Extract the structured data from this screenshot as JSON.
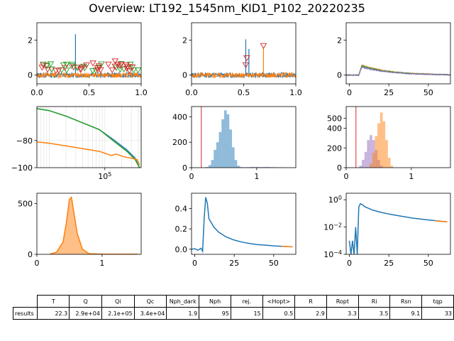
{
  "figure": {
    "title": "Overview: LT192_1545nm_KID1_P102_20220235"
  },
  "colors": {
    "blue": "#1f77b4",
    "orange": "#ff7f0e",
    "green": "#2ca02c",
    "red": "#d62728",
    "purple": "#9467bd"
  },
  "chart_data": [
    {
      "id": "p1",
      "type": "line",
      "xlim": [
        0,
        1.0
      ],
      "ylim": [
        -0.5,
        3.0
      ],
      "xticks": [
        "0.0",
        "0.5",
        "1.0"
      ],
      "yticks": [
        "0",
        "2"
      ],
      "series": [
        {
          "color": "blue",
          "kind": "noise",
          "level": 0.0,
          "spikes": [
            {
              "x": 0.37,
              "y": 2.35
            }
          ]
        },
        {
          "color": "orange",
          "kind": "noise",
          "level": 0.0
        }
      ],
      "markers": [
        {
          "color": "green",
          "y_range": [
            0.2,
            0.65
          ]
        },
        {
          "color": "red",
          "y_range": [
            0.2,
            0.85
          ]
        }
      ]
    },
    {
      "id": "p2",
      "type": "line",
      "xlim": [
        0,
        1.0
      ],
      "ylim": [
        -0.5,
        3.0
      ],
      "xticks": [
        "0.0",
        "0.5",
        "1.0"
      ],
      "yticks": [
        "0",
        "2"
      ],
      "series": [
        {
          "color": "blue",
          "kind": "noise",
          "level": 0.0,
          "spikes": [
            {
              "x": 0.52,
              "y": 2.05
            },
            {
              "x": 0.55,
              "y": 1.5
            }
          ]
        },
        {
          "color": "orange",
          "kind": "noise",
          "level": 0.0,
          "spikes": [
            {
              "x": 0.69,
              "y": 1.6
            }
          ]
        }
      ],
      "markers": [
        {
          "color": "red",
          "points": [
            {
              "x": 0.52,
              "y": 0.55
            },
            {
              "x": 0.53,
              "y": 0.95
            },
            {
              "x": 0.69,
              "y": 1.65
            }
          ]
        }
      ]
    },
    {
      "id": "p3",
      "type": "line",
      "xlim": [
        -2,
        64
      ],
      "ylim": [
        -0.5,
        3.0
      ],
      "xticks": [
        "0",
        "25",
        "50"
      ],
      "yticks": [
        "0",
        "2"
      ],
      "series": [
        {
          "color": "blue",
          "kind": "pulse",
          "peak": 0.55
        },
        {
          "color": "orange",
          "kind": "pulse",
          "peak": 0.65
        },
        {
          "color": "green",
          "kind": "pulse",
          "peak": 0.6
        },
        {
          "color": "purple",
          "kind": "pulse",
          "peak": 0.5
        }
      ]
    },
    {
      "id": "p4",
      "type": "line",
      "xscale": "log",
      "xlim": [
        6000,
        450000
      ],
      "ylim": [
        -100,
        -55
      ],
      "xticks": [
        "10^5"
      ],
      "yticks": [
        "-80",
        "-100"
      ],
      "grid": true,
      "series": [
        {
          "color": "blue",
          "points": [
            [
              6000,
              -56.5
            ],
            [
              10000,
              -58
            ],
            [
              20000,
              -62
            ],
            [
              40000,
              -67
            ],
            [
              80000,
              -72
            ],
            [
              150000,
              -80
            ],
            [
              250000,
              -87
            ],
            [
              350000,
              -93
            ],
            [
              420000,
              -100
            ]
          ]
        },
        {
          "color": "green",
          "points": [
            [
              6000,
              -56.5
            ],
            [
              10000,
              -58
            ],
            [
              20000,
              -62
            ],
            [
              40000,
              -67
            ],
            [
              80000,
              -72
            ],
            [
              150000,
              -81
            ],
            [
              250000,
              -88
            ],
            [
              350000,
              -94
            ],
            [
              420000,
              -100
            ]
          ]
        },
        {
          "color": "orange",
          "points": [
            [
              6000,
              -81
            ],
            [
              10000,
              -82
            ],
            [
              20000,
              -84
            ],
            [
              40000,
              -86
            ],
            [
              80000,
              -88
            ],
            [
              130000,
              -91
            ],
            [
              160000,
              -90
            ],
            [
              220000,
              -92
            ],
            [
              300000,
              -93
            ],
            [
              380000,
              -94
            ],
            [
              420000,
              -98
            ]
          ]
        }
      ]
    },
    {
      "id": "p5",
      "type": "histogram",
      "xlim": [
        0,
        1.6
      ],
      "ylim": [
        0,
        480
      ],
      "xticks": [
        "0",
        "1"
      ],
      "yticks": [
        "0",
        "200",
        "400"
      ],
      "vline": {
        "x": 0.15,
        "color": "red"
      },
      "series": [
        {
          "color": "blue",
          "alpha": 0.5,
          "bins": [
            0.22,
            0.26,
            0.3,
            0.34,
            0.38,
            0.42,
            0.46,
            0.5,
            0.54,
            0.58,
            0.62,
            0.66,
            0.7,
            0.74
          ],
          "values": [
            5,
            20,
            60,
            140,
            200,
            280,
            380,
            450,
            420,
            300,
            160,
            60,
            15,
            5
          ]
        },
        {
          "color": "purple",
          "alpha": 0.5,
          "bins": [
            0.8,
            0.9,
            1.0,
            1.1,
            1.2,
            1.3
          ],
          "values": [
            4,
            6,
            5,
            6,
            4,
            3
          ]
        }
      ]
    },
    {
      "id": "p6",
      "type": "histogram",
      "xlim": [
        0,
        1.6
      ],
      "ylim": [
        0,
        620
      ],
      "xticks": [
        "0",
        "1"
      ],
      "yticks": [
        "0",
        "200",
        "400",
        "500"
      ],
      "vline": {
        "x": 0.15,
        "color": "red"
      },
      "series": [
        {
          "color": "purple",
          "alpha": 0.5,
          "bins": [
            0.2,
            0.24,
            0.28,
            0.32,
            0.36,
            0.4,
            0.44,
            0.48,
            0.52
          ],
          "values": [
            20,
            80,
            160,
            280,
            330,
            280,
            180,
            80,
            20
          ]
        },
        {
          "color": "orange",
          "alpha": 0.5,
          "bins": [
            0.36,
            0.4,
            0.44,
            0.48,
            0.52,
            0.56,
            0.6,
            0.64,
            0.68
          ],
          "values": [
            40,
            150,
            320,
            450,
            560,
            470,
            280,
            100,
            20
          ]
        }
      ]
    },
    {
      "id": "p7",
      "type": "area",
      "xlim": [
        0,
        1.6
      ],
      "ylim": [
        0,
        600
      ],
      "xticks": [
        "0",
        "1"
      ],
      "yticks": [
        "0",
        "500"
      ],
      "series": [
        {
          "color": "orange",
          "points": [
            [
              0.2,
              2
            ],
            [
              0.3,
              20
            ],
            [
              0.4,
              120
            ],
            [
              0.45,
              300
            ],
            [
              0.5,
              540
            ],
            [
              0.53,
              560
            ],
            [
              0.57,
              400
            ],
            [
              0.62,
              200
            ],
            [
              0.7,
              50
            ],
            [
              0.8,
              6
            ],
            [
              1.0,
              2
            ],
            [
              1.55,
              2
            ]
          ]
        }
      ]
    },
    {
      "id": "p8",
      "type": "line",
      "xlim": [
        -2,
        64
      ],
      "ylim": [
        -0.05,
        0.55
      ],
      "xticks": [
        "0",
        "25",
        "50"
      ],
      "yticks": [
        "0.0",
        "0.2",
        "0.4"
      ],
      "series": [
        {
          "color": "blue",
          "points": [
            [
              -2,
              0
            ],
            [
              0,
              0.005
            ],
            [
              2,
              -0.01
            ],
            [
              4,
              0.01
            ],
            [
              5,
              -0.02
            ],
            [
              6,
              0.3
            ],
            [
              7,
              0.51
            ],
            [
              8,
              0.45
            ],
            [
              9,
              0.3
            ],
            [
              12,
              0.22
            ],
            [
              15,
              0.17
            ],
            [
              20,
              0.12
            ],
            [
              25,
              0.09
            ],
            [
              30,
              0.07
            ],
            [
              35,
              0.055
            ],
            [
              40,
              0.045
            ],
            [
              45,
              0.04
            ],
            [
              50,
              0.033
            ],
            [
              55,
              0.028
            ],
            [
              60,
              0.025
            ],
            [
              62,
              0.024
            ]
          ]
        },
        {
          "color": "orange",
          "points": [
            [
              55,
              0.028
            ],
            [
              58,
              0.026
            ],
            [
              60,
              0.025
            ],
            [
              62,
              0.024
            ]
          ]
        }
      ]
    },
    {
      "id": "p9",
      "type": "line",
      "yscale": "log",
      "xlim": [
        -2,
        64
      ],
      "ylim": [
        0.0001,
        3
      ],
      "xticks": [
        "0",
        "25",
        "50"
      ],
      "yticks": [
        "10^0",
        "10^-2",
        "10^-4"
      ],
      "series": [
        {
          "color": "blue",
          "points": [
            [
              0,
              0.001
            ],
            [
              1,
              0.0001
            ],
            [
              2,
              0.001
            ],
            [
              3,
              0.0001
            ],
            [
              4,
              0.01
            ],
            [
              5,
              0.0001
            ],
            [
              6,
              0.3
            ],
            [
              7,
              0.51
            ],
            [
              8,
              0.45
            ],
            [
              10,
              0.3
            ],
            [
              15,
              0.17
            ],
            [
              20,
              0.12
            ],
            [
              25,
              0.09
            ],
            [
              30,
              0.07
            ],
            [
              40,
              0.045
            ],
            [
              50,
              0.033
            ],
            [
              60,
              0.025
            ],
            [
              62,
              0.024
            ]
          ]
        },
        {
          "color": "orange",
          "points": [
            [
              54,
              0.029
            ],
            [
              58,
              0.026
            ],
            [
              62,
              0.024
            ]
          ]
        }
      ]
    }
  ],
  "table": {
    "headers": [
      "T",
      "Q",
      "Qi",
      "Qc",
      "Nph_dark",
      "Nph",
      "rej.",
      "<Hopt>",
      "R",
      "Ropt",
      "Ri",
      "Rsn",
      "tqp"
    ],
    "row_label": "results",
    "values": [
      "22.3",
      "2.9e+04",
      "2.1e+05",
      "3.4e+04",
      "1.9",
      "95",
      "15",
      "0.5",
      "2.9",
      "3.3",
      "3.5",
      "9.1",
      "33"
    ]
  }
}
